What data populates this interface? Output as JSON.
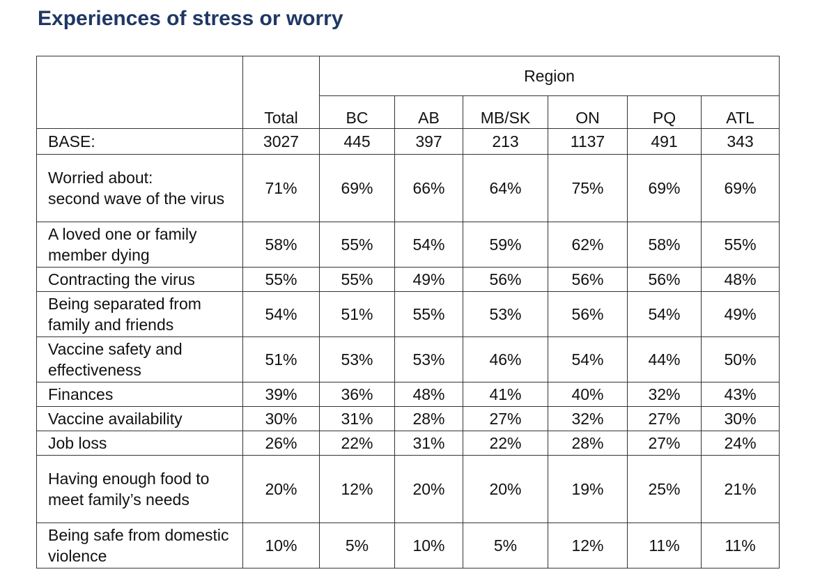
{
  "title": "Experiences of stress or worry",
  "region_label": "Region",
  "columns": [
    "Total",
    "BC",
    "AB",
    "MB/SK",
    "ON",
    "PQ",
    "ATL"
  ],
  "base": {
    "label": "BASE:",
    "values": [
      "3027",
      "445",
      "397",
      "213",
      "1137",
      "491",
      "343"
    ]
  },
  "worried_header": "Worried about:",
  "rows": [
    {
      "label": "second wave of the virus",
      "values": [
        "71%",
        "69%",
        "66%",
        "64%",
        "75%",
        "69%",
        "69%"
      ]
    },
    {
      "label": "A loved one or family member dying",
      "values": [
        "58%",
        "55%",
        "54%",
        "59%",
        "62%",
        "58%",
        "55%"
      ]
    },
    {
      "label": "Contracting the virus",
      "values": [
        "55%",
        "55%",
        "49%",
        "56%",
        "56%",
        "56%",
        "48%"
      ]
    },
    {
      "label": "Being separated from family and friends",
      "values": [
        "54%",
        "51%",
        "55%",
        "53%",
        "56%",
        "54%",
        "49%"
      ]
    },
    {
      "label": "Vaccine safety and effectiveness",
      "values": [
        "51%",
        "53%",
        "53%",
        "46%",
        "54%",
        "44%",
        "50%"
      ]
    },
    {
      "label": "Finances",
      "values": [
        "39%",
        "36%",
        "48%",
        "41%",
        "40%",
        "32%",
        "43%"
      ]
    },
    {
      "label": "Vaccine availability",
      "values": [
        "30%",
        "31%",
        "28%",
        "27%",
        "32%",
        "27%",
        "30%"
      ]
    },
    {
      "label": "Job loss",
      "values": [
        "26%",
        "22%",
        "31%",
        "22%",
        "28%",
        "27%",
        "24%"
      ]
    },
    {
      "label": "Having enough food to meet family’s needs",
      "values": [
        "20%",
        "12%",
        "20%",
        "20%",
        "19%",
        "25%",
        "21%"
      ]
    },
    {
      "label": "Being safe from domestic violence",
      "values": [
        "10%",
        "5%",
        "10%",
        "5%",
        "12%",
        "11%",
        "11%"
      ]
    }
  ]
}
